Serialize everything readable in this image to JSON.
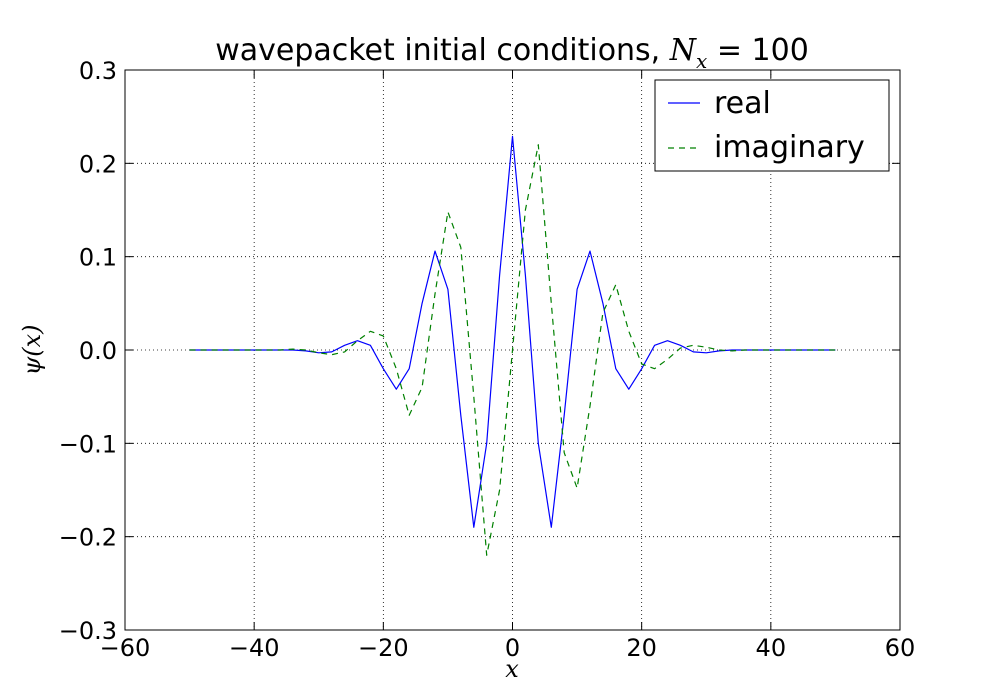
{
  "chart_data": {
    "type": "line",
    "title": {
      "text": "wavepacket initial conditions, ",
      "math_var": "N",
      "math_sub": "x",
      "math_eq": " = ",
      "value": "100"
    },
    "xlabel": "x",
    "ylabel": "ψ(x)",
    "xlim": [
      -60,
      60
    ],
    "ylim": [
      -0.3,
      0.3
    ],
    "xticks": [
      -60,
      -40,
      -20,
      0,
      20,
      40,
      60
    ],
    "xtick_labels": [
      "−60",
      "−40",
      "−20",
      "0",
      "20",
      "40",
      "60"
    ],
    "yticks": [
      -0.3,
      -0.2,
      -0.1,
      0.0,
      0.1,
      0.2,
      0.3
    ],
    "ytick_labels": [
      "−0.3",
      "−0.2",
      "−0.1",
      "0.0",
      "0.1",
      "0.2",
      "0.3"
    ],
    "grid": true,
    "legend_position": "top-right",
    "series": [
      {
        "name": "real",
        "color": "#0000ff",
        "style": "solid",
        "x": [
          -50,
          -34,
          -32,
          -30,
          -28,
          -26,
          -24,
          -22,
          -20,
          -18,
          -16,
          -14,
          -12,
          -10,
          -8,
          -6,
          -4,
          -2,
          0,
          2,
          4,
          6,
          8,
          10,
          12,
          14,
          16,
          18,
          20,
          22,
          24,
          26,
          28,
          30,
          32,
          34,
          50
        ],
        "y": [
          0,
          0,
          -0.001,
          -0.003,
          -0.002,
          0.005,
          0.01,
          0.005,
          -0.02,
          -0.042,
          -0.02,
          0.05,
          0.106,
          0.065,
          -0.07,
          -0.19,
          -0.1,
          0.08,
          0.229,
          0.08,
          -0.1,
          -0.19,
          -0.07,
          0.065,
          0.106,
          0.05,
          -0.02,
          -0.042,
          -0.02,
          0.005,
          0.01,
          0.005,
          -0.002,
          -0.003,
          -0.001,
          0,
          0
        ]
      },
      {
        "name": "imaginary",
        "color": "#008000",
        "style": "dashed",
        "x": [
          -50,
          -36,
          -34,
          -32,
          -30,
          -28,
          -26,
          -24,
          -22,
          -20,
          -18,
          -16,
          -14,
          -12,
          -10,
          -8,
          -6,
          -4,
          -2,
          0,
          2,
          4,
          6,
          8,
          10,
          12,
          14,
          16,
          18,
          20,
          22,
          24,
          26,
          28,
          30,
          32,
          34,
          36,
          50
        ],
        "y": [
          0,
          0,
          0.001,
          0,
          -0.003,
          -0.005,
          -0.002,
          0.01,
          0.02,
          0.015,
          -0.02,
          -0.07,
          -0.04,
          0.06,
          0.148,
          0.11,
          -0.05,
          -0.22,
          -0.15,
          0,
          0.15,
          0.22,
          0.05,
          -0.11,
          -0.148,
          -0.06,
          0.04,
          0.07,
          0.02,
          -0.015,
          -0.02,
          -0.01,
          0.002,
          0.005,
          0.003,
          0,
          -0.001,
          0,
          0
        ]
      }
    ]
  }
}
